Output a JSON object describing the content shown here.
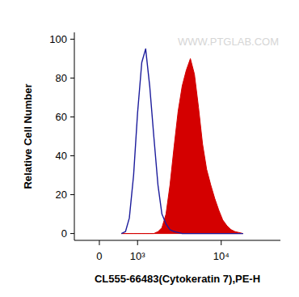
{
  "chart_data": {
    "type": "area",
    "x_label": "CL555-66483(Cytokeratin 7),PE-H",
    "y_label": "Relative Cell Number",
    "annotations": [
      "WWW.PTGLAB.COM"
    ],
    "x": [
      520,
      630,
      740,
      870,
      1000,
      1150,
      1300,
      1470,
      1660,
      1870,
      2090,
      2340,
      2610,
      2920,
      3250,
      3620,
      4030,
      4490,
      4990,
      5550,
      6170,
      6860,
      7630,
      8470,
      9400,
      10400,
      11600,
      12900,
      14300,
      15900,
      17600
    ],
    "series": [
      {
        "type": "line",
        "color": "#1c1c9c",
        "values": [
          0,
          1,
          8,
          30,
          62,
          88,
          95,
          76,
          50,
          25,
          10,
          5,
          2,
          1,
          0.5,
          0,
          0,
          0,
          0,
          0,
          0,
          0,
          0,
          0,
          0,
          0,
          0,
          0,
          0,
          0,
          0
        ]
      },
      {
        "type": "area",
        "color": "#d40000",
        "values": [
          0,
          0,
          0,
          0,
          0,
          0,
          0,
          0,
          0,
          1,
          3,
          10,
          25,
          45,
          63,
          76,
          84,
          90,
          82,
          65,
          46,
          33,
          25,
          18,
          12,
          7,
          4,
          2,
          1,
          0.5,
          0
        ]
      }
    ],
    "log": "x",
    "xlim": [
      -600,
      46000
    ],
    "xticks": [
      0,
      {
        "value": 1000,
        "label": "10³"
      },
      {
        "value": 10000,
        "label": "10⁴"
      }
    ],
    "ylim": [
      -3.5,
      103.5
    ],
    "yticks": [
      0,
      20,
      40,
      60,
      80,
      100
    ],
    "grid": false
  }
}
